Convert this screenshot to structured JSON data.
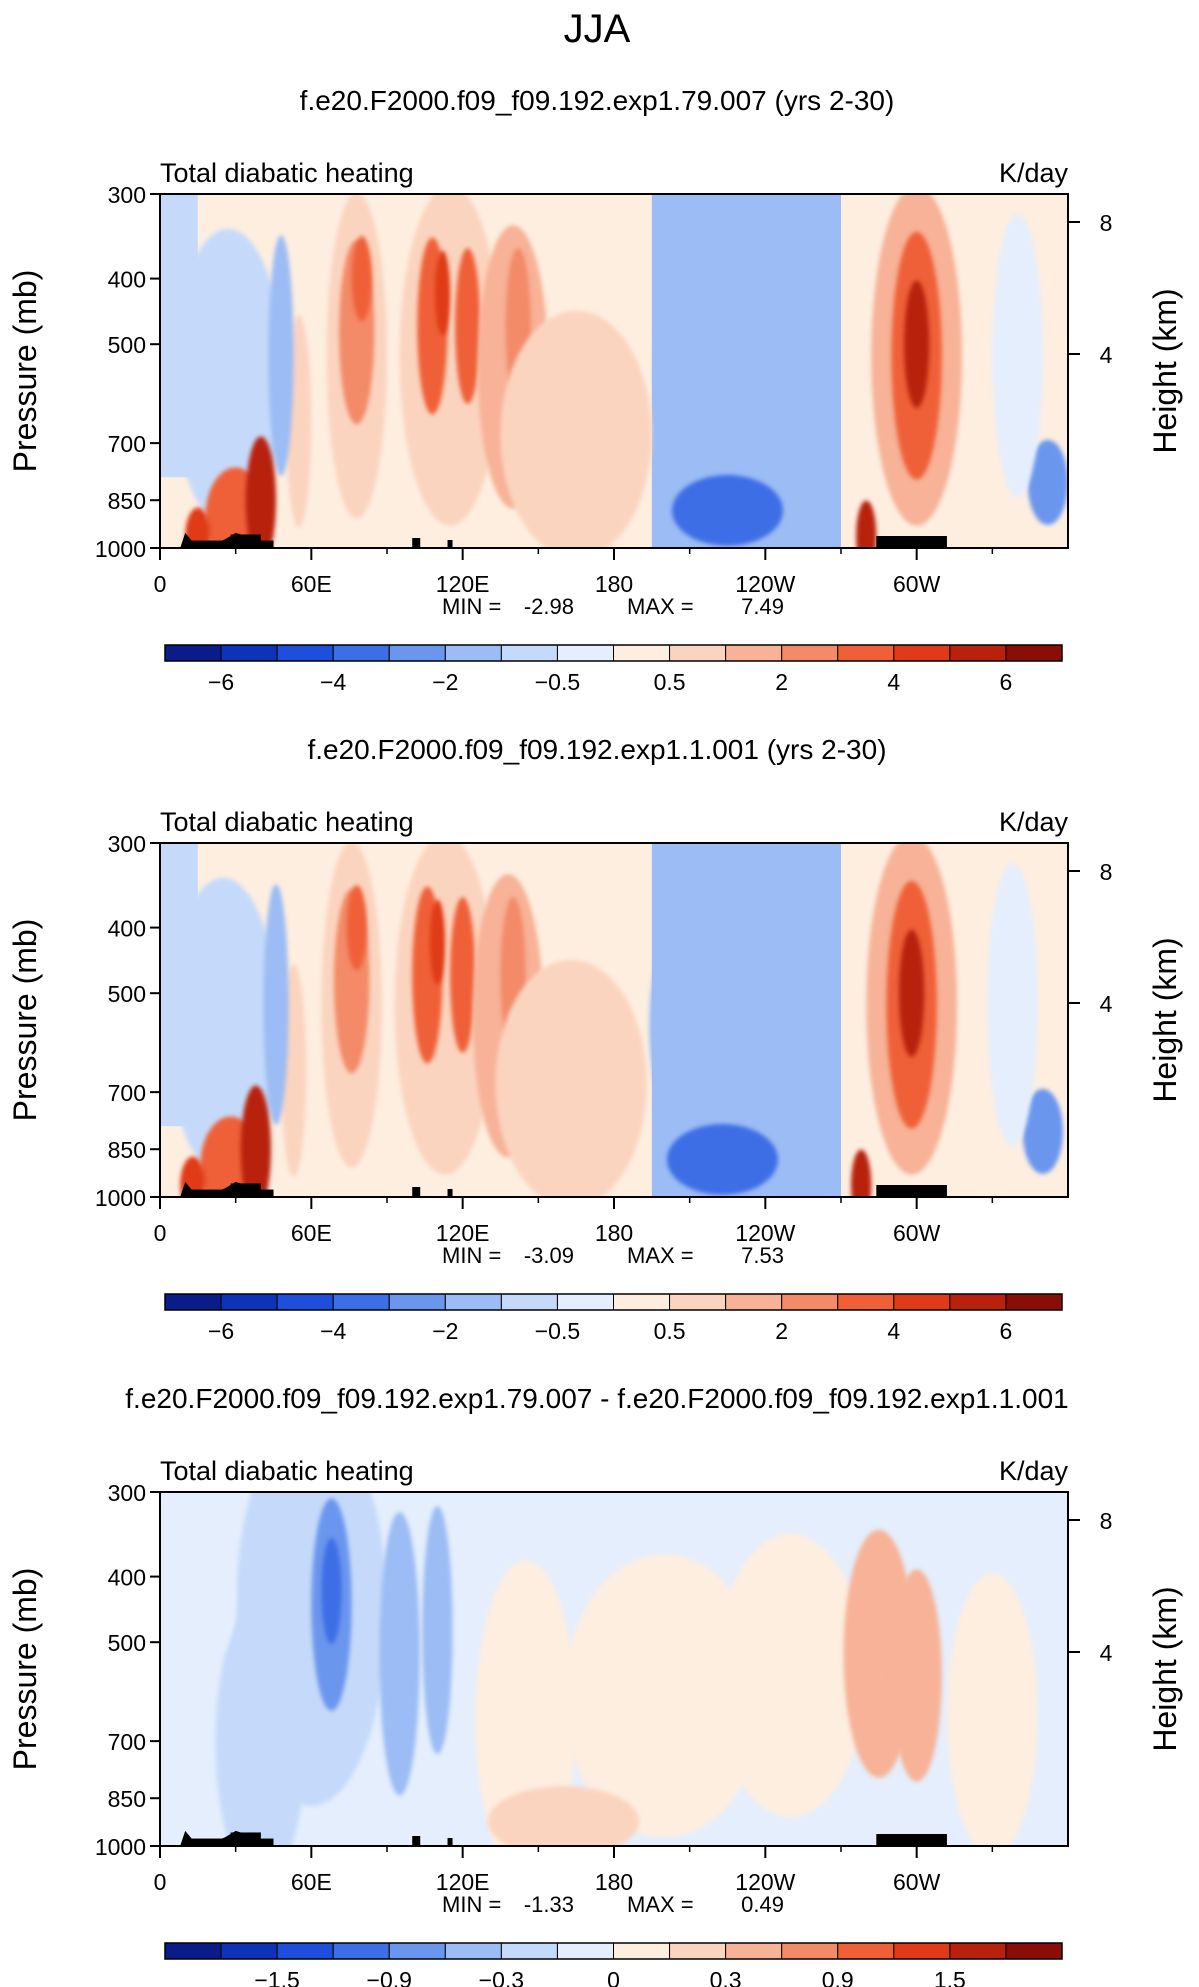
{
  "season": "JJA",
  "chart_data": [
    {
      "type": "heatmap",
      "title": "f.e20.F2000.f09_f09.192.exp1.79.007 (yrs 2-30)",
      "left_label": "Total diabatic heating",
      "units": "K/day",
      "ylabel": "Pressure (mb)",
      "ylabel_right": "Height (km)",
      "x_ticks": [
        "0",
        "60E",
        "120E",
        "180",
        "120W",
        "60W"
      ],
      "y_ticks": [
        "300",
        "400",
        "500",
        "700",
        "850",
        "1000"
      ],
      "right_ticks": [
        "8",
        "4"
      ],
      "min_label": "MIN =",
      "min": "-2.98",
      "max_label": "MAX =",
      "max": "7.49",
      "colorbar_ticks": [
        "-6",
        "-4",
        "-2",
        "-0.5",
        "0.5",
        "2",
        "4",
        "6"
      ],
      "colorbar_colors": [
        "#0a1c8a",
        "#0d33b8",
        "#1e4fdc",
        "#3c6ee6",
        "#6b96ee",
        "#9bbcf4",
        "#c5dafa",
        "#e4eefc",
        "#fdeee0",
        "#fbd4bf",
        "#f7b297",
        "#f38a68",
        "#ef6038",
        "#e03a18",
        "#b8220c",
        "#8a0d08"
      ]
    },
    {
      "type": "heatmap",
      "title": "f.e20.F2000.f09_f09.192.exp1.1.001 (yrs 2-30)",
      "left_label": "Total diabatic heating",
      "units": "K/day",
      "ylabel": "Pressure (mb)",
      "ylabel_right": "Height (km)",
      "x_ticks": [
        "0",
        "60E",
        "120E",
        "180",
        "120W",
        "60W"
      ],
      "y_ticks": [
        "300",
        "400",
        "500",
        "700",
        "850",
        "1000"
      ],
      "right_ticks": [
        "8",
        "4"
      ],
      "min_label": "MIN =",
      "min": "-3.09",
      "max_label": "MAX =",
      "max": "7.53",
      "colorbar_ticks": [
        "-6",
        "-4",
        "-2",
        "-0.5",
        "0.5",
        "2",
        "4",
        "6"
      ],
      "colorbar_colors": [
        "#0a1c8a",
        "#0d33b8",
        "#1e4fdc",
        "#3c6ee6",
        "#6b96ee",
        "#9bbcf4",
        "#c5dafa",
        "#e4eefc",
        "#fdeee0",
        "#fbd4bf",
        "#f7b297",
        "#f38a68",
        "#ef6038",
        "#e03a18",
        "#b8220c",
        "#8a0d08"
      ]
    },
    {
      "type": "heatmap",
      "title": "f.e20.F2000.f09_f09.192.exp1.79.007 - f.e20.F2000.f09_f09.192.exp1.1.001",
      "left_label": "Total diabatic heating",
      "units": "K/day",
      "ylabel": "Pressure (mb)",
      "ylabel_right": "Height (km)",
      "x_ticks": [
        "0",
        "60E",
        "120E",
        "180",
        "120W",
        "60W"
      ],
      "y_ticks": [
        "300",
        "400",
        "500",
        "700",
        "850",
        "1000"
      ],
      "right_ticks": [
        "8",
        "4"
      ],
      "min_label": "MIN =",
      "min": "-1.33",
      "max_label": "MAX =",
      "max": "0.49",
      "colorbar_ticks": [
        "-1.5",
        "-0.9",
        "-0.3",
        "0",
        "0.3",
        "0.9",
        "1.5"
      ],
      "colorbar_colors": [
        "#0a1c8a",
        "#0d33b8",
        "#1e4fdc",
        "#3c6ee6",
        "#6b96ee",
        "#9bbcf4",
        "#c5dafa",
        "#e4eefc",
        "#fdeee0",
        "#fbd4bf",
        "#f7b297",
        "#f38a68",
        "#ef6038",
        "#e03a18",
        "#b8220c",
        "#8a0d08"
      ]
    }
  ]
}
